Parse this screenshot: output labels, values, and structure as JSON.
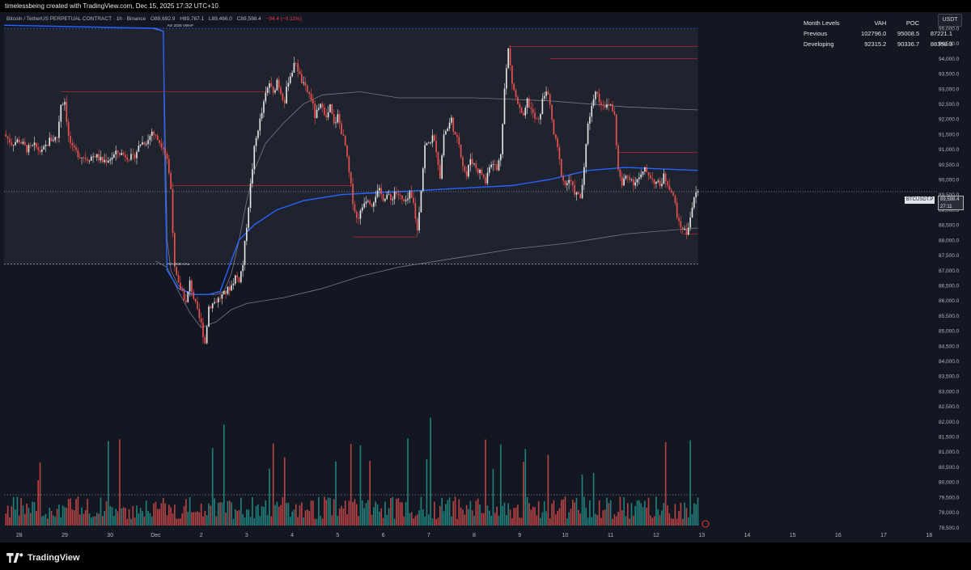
{
  "header": {
    "created_by": "timelessbeing created with TradingView.com, Dec 15, 2025 17:32 UTC+10"
  },
  "symbol": {
    "title": "Bitcoin / TetherUS PERPETUAL CONTRACT · 1h · Binance",
    "open": "O89,692.9",
    "high": "H89,787.1",
    "low": "L89,466.0",
    "close": "C89,598.4",
    "change": "−94.4 (−0.11%)"
  },
  "unit_badge": "USDT",
  "month_levels": {
    "headers": [
      "Month Levels",
      "VAH",
      "POC",
      "VAL"
    ],
    "rows": [
      [
        "Previous",
        "102796.0",
        "95008.5",
        "87221.1"
      ],
      [
        "Developing",
        "92315.2",
        "90336.7",
        "88358.3"
      ]
    ]
  },
  "price_tag": {
    "symbol": "BTCUSDT.P",
    "price": "89,598.4",
    "countdown": "27:11"
  },
  "annotations": {
    "poc_label": "AVI 2025 VWAP",
    "val_label": "AVI 2025 VAL"
  },
  "footer": {
    "brand": "TradingView"
  },
  "colors": {
    "background": "#131722",
    "up": "#e6e6e6",
    "down": "#ef5350",
    "vwap": "#2962ff",
    "bands": "#787b86",
    "level_lines": "#b22833"
  },
  "chart_data": {
    "type": "candlestick",
    "interval": "1h",
    "y_axis": {
      "ylim": [
        78400,
        95400
      ],
      "ticks": [
        "95,000.0",
        "94,500.0",
        "94,000.0",
        "93,500.0",
        "93,000.0",
        "92,500.0",
        "92,000.0",
        "91,500.0",
        "91,000.0",
        "90,500.0",
        "90,000.0",
        "89,500.0",
        "89,000.0",
        "88,500.0",
        "88,000.0",
        "87,500.0",
        "87,000.0",
        "86,500.0",
        "86,000.0",
        "85,500.0",
        "85,000.0",
        "84,500.0",
        "84,000.0",
        "83,500.0",
        "83,000.0",
        "82,500.0",
        "82,000.0",
        "81,500.0",
        "81,000.0",
        "80,500.0",
        "80,000.0",
        "79,500.0",
        "79,000.0",
        "78,500.0"
      ],
      "tick_values": [
        95000,
        94500,
        94000,
        93500,
        93000,
        92500,
        92000,
        91500,
        91000,
        90500,
        90000,
        89500,
        89000,
        88500,
        88000,
        87500,
        87000,
        86500,
        86000,
        85500,
        85000,
        84500,
        84000,
        83500,
        83000,
        82500,
        82000,
        81500,
        81000,
        80500,
        80000,
        79500,
        79000,
        78500
      ]
    },
    "x_axis": {
      "labels": [
        "28",
        "29",
        "30",
        "Dec",
        "2",
        "3",
        "4",
        "5",
        "6",
        "7",
        "8",
        "9",
        "10",
        "11",
        "12",
        "13",
        "14",
        "15",
        "16",
        "17",
        "18"
      ],
      "label_hours": [
        0,
        24,
        48,
        72,
        96,
        120,
        144,
        168,
        192,
        216,
        240,
        264,
        288,
        312,
        336,
        360,
        384,
        408,
        432,
        456,
        480
      ],
      "xlim_hours": [
        -8,
        485
      ]
    },
    "close_path": [
      [
        -8,
        91500
      ],
      [
        -4,
        91200
      ],
      [
        0,
        91300
      ],
      [
        4,
        91000
      ],
      [
        8,
        91100
      ],
      [
        12,
        90900
      ],
      [
        16,
        91300
      ],
      [
        20,
        91400
      ],
      [
        22,
        92500
      ],
      [
        24,
        92600
      ],
      [
        26,
        91400
      ],
      [
        28,
        91000
      ],
      [
        32,
        90800
      ],
      [
        36,
        90700
      ],
      [
        40,
        90800
      ],
      [
        44,
        90600
      ],
      [
        48,
        90700
      ],
      [
        52,
        90900
      ],
      [
        56,
        90800
      ],
      [
        60,
        90700
      ],
      [
        64,
        91200
      ],
      [
        68,
        91300
      ],
      [
        70,
        91600
      ],
      [
        72,
        91400
      ],
      [
        76,
        91100
      ],
      [
        78,
        90700
      ],
      [
        80,
        89700
      ],
      [
        82,
        87000
      ],
      [
        84,
        86500
      ],
      [
        86,
        86300
      ],
      [
        88,
        85900
      ],
      [
        90,
        86600
      ],
      [
        92,
        86100
      ],
      [
        94,
        85600
      ],
      [
        96,
        85200
      ],
      [
        98,
        84600
      ],
      [
        100,
        85800
      ],
      [
        104,
        86000
      ],
      [
        108,
        86200
      ],
      [
        112,
        86500
      ],
      [
        114,
        86800
      ],
      [
        116,
        86700
      ],
      [
        118,
        87200
      ],
      [
        120,
        88500
      ],
      [
        122,
        89800
      ],
      [
        124,
        91000
      ],
      [
        126,
        91700
      ],
      [
        128,
        92200
      ],
      [
        130,
        92800
      ],
      [
        132,
        93200
      ],
      [
        134,
        92800
      ],
      [
        136,
        93300
      ],
      [
        138,
        92900
      ],
      [
        140,
        92600
      ],
      [
        142,
        93300
      ],
      [
        144,
        93600
      ],
      [
        146,
        93900
      ],
      [
        148,
        93400
      ],
      [
        150,
        93100
      ],
      [
        152,
        92900
      ],
      [
        154,
        92700
      ],
      [
        156,
        92100
      ],
      [
        158,
        92300
      ],
      [
        160,
        92500
      ],
      [
        162,
        92000
      ],
      [
        164,
        92400
      ],
      [
        166,
        91800
      ],
      [
        168,
        92100
      ],
      [
        170,
        91600
      ],
      [
        172,
        91100
      ],
      [
        174,
        90200
      ],
      [
        176,
        89300
      ],
      [
        178,
        88700
      ],
      [
        180,
        88900
      ],
      [
        182,
        89300
      ],
      [
        184,
        89400
      ],
      [
        186,
        89200
      ],
      [
        188,
        89500
      ],
      [
        190,
        89600
      ],
      [
        192,
        89400
      ],
      [
        194,
        89500
      ],
      [
        196,
        89300
      ],
      [
        198,
        89600
      ],
      [
        200,
        89500
      ],
      [
        202,
        89300
      ],
      [
        204,
        89200
      ],
      [
        206,
        89500
      ],
      [
        208,
        89200
      ],
      [
        210,
        88300
      ],
      [
        212,
        89700
      ],
      [
        214,
        91100
      ],
      [
        216,
        91200
      ],
      [
        218,
        91400
      ],
      [
        220,
        91000
      ],
      [
        222,
        90100
      ],
      [
        224,
        91500
      ],
      [
        226,
        91700
      ],
      [
        228,
        92000
      ],
      [
        230,
        91400
      ],
      [
        232,
        91200
      ],
      [
        234,
        90500
      ],
      [
        236,
        90100
      ],
      [
        238,
        90700
      ],
      [
        240,
        90500
      ],
      [
        242,
        90300
      ],
      [
        244,
        90200
      ],
      [
        246,
        89900
      ],
      [
        248,
        90500
      ],
      [
        250,
        90600
      ],
      [
        252,
        90300
      ],
      [
        254,
        90900
      ],
      [
        256,
        93000
      ],
      [
        258,
        94300
      ],
      [
        260,
        93200
      ],
      [
        262,
        92700
      ],
      [
        264,
        92300
      ],
      [
        266,
        92000
      ],
      [
        268,
        92600
      ],
      [
        270,
        92300
      ],
      [
        272,
        92000
      ],
      [
        274,
        91900
      ],
      [
        276,
        92600
      ],
      [
        278,
        93000
      ],
      [
        280,
        92400
      ],
      [
        282,
        91500
      ],
      [
        284,
        91000
      ],
      [
        286,
        90200
      ],
      [
        288,
        89800
      ],
      [
        290,
        90000
      ],
      [
        292,
        89700
      ],
      [
        294,
        89500
      ],
      [
        296,
        89400
      ],
      [
        298,
        90300
      ],
      [
        300,
        91900
      ],
      [
        302,
        92400
      ],
      [
        304,
        93000
      ],
      [
        306,
        92600
      ],
      [
        308,
        92500
      ],
      [
        310,
        92400
      ],
      [
        312,
        92500
      ],
      [
        314,
        92100
      ],
      [
        316,
        90300
      ],
      [
        318,
        89800
      ],
      [
        320,
        90100
      ],
      [
        322,
        90100
      ],
      [
        324,
        89900
      ],
      [
        326,
        90000
      ],
      [
        328,
        90100
      ],
      [
        330,
        90300
      ],
      [
        332,
        90200
      ],
      [
        334,
        90000
      ],
      [
        336,
        89900
      ],
      [
        338,
        89800
      ],
      [
        340,
        90100
      ],
      [
        342,
        89900
      ],
      [
        344,
        89600
      ],
      [
        346,
        89200
      ],
      [
        348,
        88500
      ],
      [
        350,
        88400
      ],
      [
        352,
        88200
      ],
      [
        354,
        88800
      ],
      [
        356,
        89400
      ],
      [
        358,
        89600
      ]
    ],
    "vwap": [
      [
        -8,
        95100
      ],
      [
        70,
        95000
      ],
      [
        73,
        94950
      ],
      [
        76,
        94900
      ],
      [
        78,
        88000
      ],
      [
        80,
        87000
      ],
      [
        84,
        86500
      ],
      [
        90,
        86200
      ],
      [
        96,
        86200
      ],
      [
        104,
        86200
      ],
      [
        108,
        86300
      ],
      [
        112,
        86900
      ],
      [
        116,
        88000
      ],
      [
        120,
        89300
      ],
      [
        124,
        90300
      ],
      [
        130,
        91200
      ],
      [
        140,
        91900
      ],
      [
        150,
        92500
      ],
      [
        160,
        92800
      ],
      [
        180,
        92900
      ],
      [
        200,
        92700
      ],
      [
        240,
        92700
      ],
      [
        280,
        92600
      ],
      [
        320,
        92400
      ],
      [
        358,
        92300
      ]
    ],
    "vwap_blue": [
      [
        -8,
        95100
      ],
      [
        72,
        95000
      ],
      [
        76,
        94900
      ],
      [
        77,
        90000
      ],
      [
        78,
        87000
      ],
      [
        84,
        86400
      ],
      [
        92,
        86200
      ],
      [
        100,
        86200
      ],
      [
        106,
        86300
      ],
      [
        110,
        87000
      ],
      [
        116,
        88000
      ],
      [
        124,
        88500
      ],
      [
        136,
        89000
      ],
      [
        150,
        89300
      ],
      [
        170,
        89500
      ],
      [
        200,
        89600
      ],
      [
        230,
        89700
      ],
      [
        260,
        89800
      ],
      [
        280,
        90000
      ],
      [
        300,
        90300
      ],
      [
        320,
        90400
      ],
      [
        358,
        90300
      ]
    ],
    "lower_band": [
      [
        72,
        87300
      ],
      [
        78,
        87100
      ],
      [
        84,
        86300
      ],
      [
        90,
        85600
      ],
      [
        96,
        85100
      ],
      [
        104,
        85300
      ],
      [
        112,
        85700
      ],
      [
        120,
        85900
      ],
      [
        140,
        86100
      ],
      [
        160,
        86400
      ],
      [
        180,
        86800
      ],
      [
        200,
        87100
      ],
      [
        230,
        87400
      ],
      [
        260,
        87700
      ],
      [
        290,
        87900
      ],
      [
        320,
        88200
      ],
      [
        358,
        88400
      ]
    ],
    "level_lines": [
      {
        "from": 22,
        "to": 132,
        "value": 92900
      },
      {
        "from": 80,
        "to": 176,
        "value": 89800
      },
      {
        "from": 176,
        "to": 210,
        "value": 88100
      },
      {
        "from": 258,
        "to": 358,
        "value": 94400
      },
      {
        "from": 280,
        "to": 358,
        "value": 94000
      },
      {
        "from": 316,
        "to": 358,
        "value": 90900
      },
      {
        "from": 350,
        "to": 358,
        "value": 88200
      }
    ],
    "range_box": {
      "from": -8,
      "to": 358,
      "top": 95000,
      "bottom": 87200
    },
    "dotted_lines": [
      95000,
      87200
    ],
    "last_price": 89598.4
  }
}
